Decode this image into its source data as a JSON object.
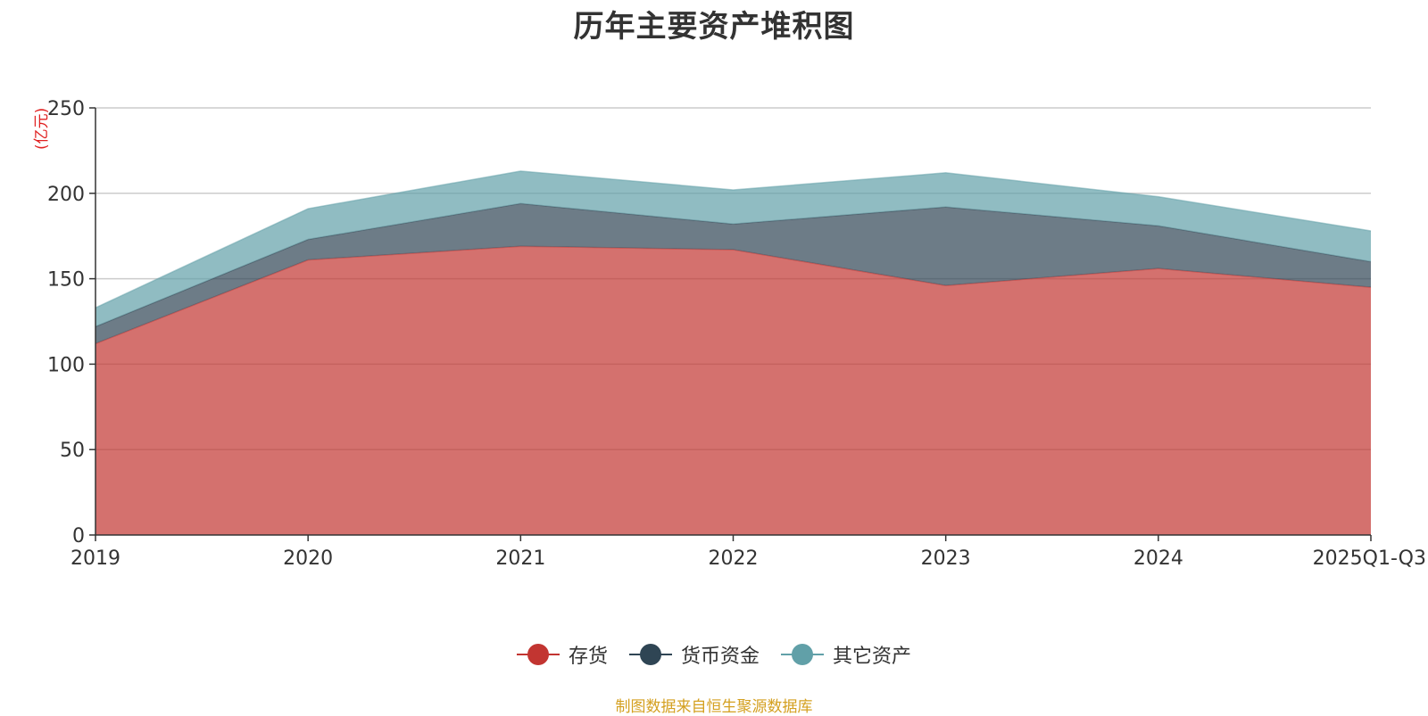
{
  "chart_data": {
    "type": "area",
    "stacked": true,
    "title": "历年主要资产堆积图",
    "ylabel": "(亿元)",
    "xlabel": "",
    "categories": [
      "2019",
      "2020",
      "2021",
      "2022",
      "2023",
      "2024",
      "2025Q1-Q3"
    ],
    "ylim": [
      0,
      250
    ],
    "yticks": [
      0,
      50,
      100,
      150,
      200,
      250
    ],
    "grid": true,
    "legend_position": "bottom",
    "series": [
      {
        "name": "存货",
        "color": "#c23531",
        "values": [
          112,
          161,
          169,
          167,
          146,
          156,
          145
        ]
      },
      {
        "name": "货币资金",
        "color": "#2f4554",
        "values": [
          10,
          12,
          25,
          15,
          46,
          25,
          15
        ]
      },
      {
        "name": "其它资产",
        "color": "#61a0a8",
        "values": [
          11,
          18,
          19,
          20,
          20,
          17,
          18
        ]
      }
    ]
  },
  "source_note": "制图数据来自恒生聚源数据库"
}
